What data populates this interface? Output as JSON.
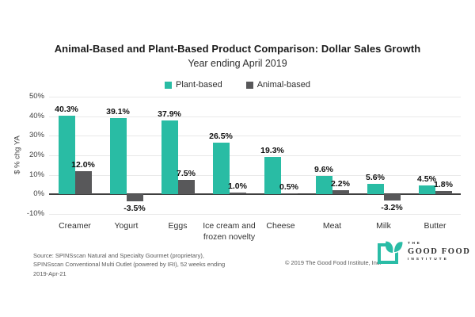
{
  "title": "Animal-Based and Plant-Based Product Comparison: Dollar Sales Growth",
  "subtitle": "Year ending April 2019",
  "legend": [
    {
      "label": "Plant-based",
      "color": "#29bca4"
    },
    {
      "label": "Animal-based",
      "color": "#58585a"
    }
  ],
  "chart_data": {
    "type": "bar",
    "categories": [
      "Creamer",
      "Yogurt",
      "Eggs",
      "Ice cream and frozen novelty",
      "Cheese",
      "Meat",
      "Milk",
      "Butter"
    ],
    "series": [
      {
        "name": "Plant-based",
        "color": "#29bca4",
        "values": [
          40.3,
          39.1,
          37.9,
          26.5,
          19.3,
          9.6,
          5.6,
          4.5
        ]
      },
      {
        "name": "Animal-based",
        "color": "#58585a",
        "values": [
          12.0,
          -3.5,
          7.5,
          1.0,
          0.5,
          2.2,
          -3.2,
          1.8
        ]
      }
    ],
    "title": "Animal-Based and Plant-Based Product Comparison: Dollar Sales Growth",
    "subtitle": "Year ending April 2019",
    "xlabel": "",
    "ylabel": "$ % chg YA",
    "ylim": [
      -10,
      50
    ],
    "yticks": [
      50,
      40,
      30,
      20,
      10,
      0,
      -10
    ],
    "ytick_suffix": "%",
    "grid": true,
    "legend_position": "top",
    "value_labels": true
  },
  "footer": {
    "source": "Source: SPINSscan Natural and Specialty Gourmet (proprietary), SPINSscan Conventional Multi Outlet (powered by IRI), 52 weeks ending 2019-Apr-21",
    "copyright": "© 2019 The Good Food Institute, Inc.",
    "logo": {
      "line1": "THE",
      "line2": "GOOD FOOD",
      "line3": "INSTITUTE"
    }
  },
  "colors": {
    "plant": "#29bca4",
    "animal": "#58585a",
    "gridline": "#e9e9e9",
    "zero_axis": "#3f3f3f",
    "logo_teal": "#2abca6"
  }
}
